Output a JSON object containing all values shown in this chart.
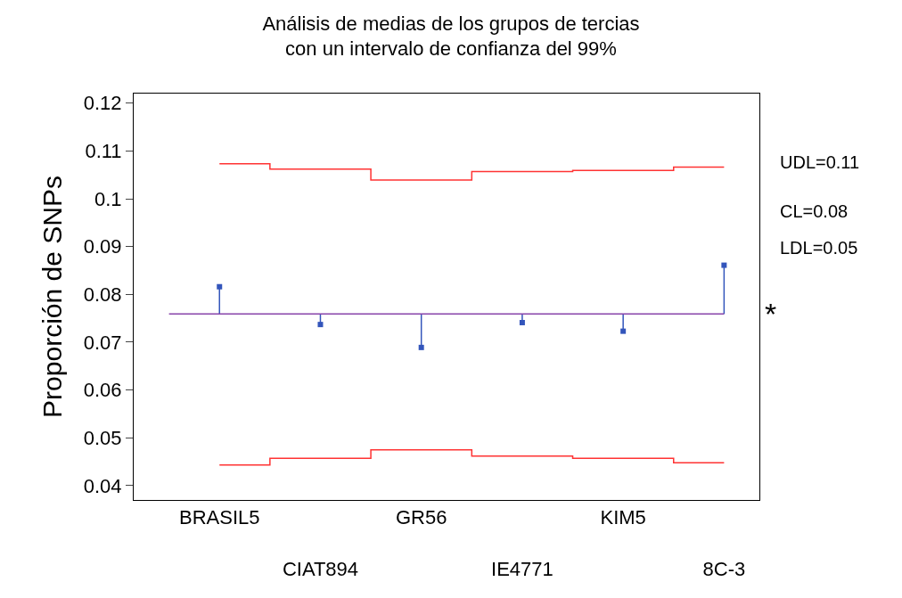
{
  "chart_data": {
    "type": "scatter",
    "title": "Análisis de medias de los grupos de tercias\ncon un intervalo de confianza del 99%",
    "ylabel": "Proporción de SNPs",
    "categories": [
      "BRASIL5",
      "CIAT894",
      "GR56",
      "IE4771",
      "KIM5",
      "8C-3"
    ],
    "series": [
      {
        "type": "step",
        "color": "#ff3333",
        "values": [
          0.1073,
          0.1062,
          0.1039,
          0.1057,
          0.1059,
          0.1066
        ]
      },
      {
        "type": "step",
        "color": "#ff3333",
        "values": [
          0.0443,
          0.0457,
          0.0475,
          0.0462,
          0.0457,
          0.0448
        ]
      },
      {
        "color": "#3355bb",
        "marker": "square",
        "values": [
          0.0816,
          0.0737,
          0.0689,
          0.0741,
          0.0723,
          0.0861
        ],
        "errors": [
          [
            0.0759,
            0.0816
          ],
          [
            0.0737,
            0.0759
          ],
          [
            0.0689,
            0.0759
          ],
          [
            0.0741,
            0.0759
          ],
          [
            0.0723,
            0.0759
          ],
          [
            0.0759,
            0.0861
          ]
        ]
      }
    ],
    "ref_lines": [
      {
        "axis": "y",
        "value": 0.0759,
        "color": "#8844aa"
      }
    ],
    "ylim": [
      0.037,
      0.122
    ],
    "yticks": [
      {
        "value": 0.04,
        "label": "0.04"
      },
      {
        "value": 0.05,
        "label": "0.05"
      },
      {
        "value": 0.06,
        "label": "0.06"
      },
      {
        "value": 0.07,
        "label": "0.07"
      },
      {
        "value": 0.08,
        "label": "0.08"
      },
      {
        "value": 0.09,
        "label": "0.09"
      },
      {
        "value": 0.1,
        "label": "0.1"
      },
      {
        "value": 0.11,
        "label": "0.11"
      },
      {
        "value": 0.12,
        "label": "0.12"
      }
    ],
    "annotations": [
      "UDL=0.11",
      "CL=0.08",
      "LDL=0.05",
      "*"
    ]
  }
}
